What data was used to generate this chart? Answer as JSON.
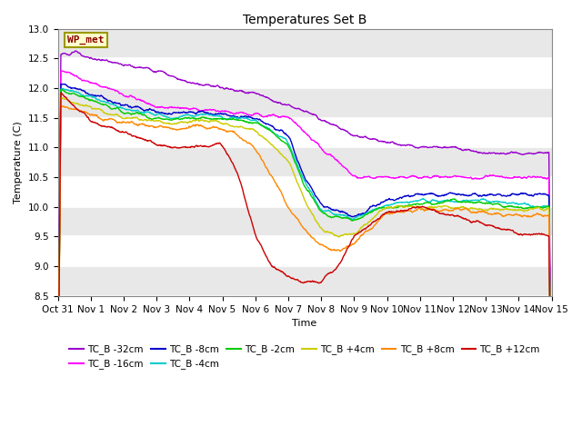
{
  "title": "Temperatures Set B",
  "xlabel": "Time",
  "ylabel": "Temperature (C)",
  "ylim": [
    8.5,
    13.0
  ],
  "yticks": [
    8.5,
    9.0,
    9.5,
    10.0,
    10.5,
    11.0,
    11.5,
    12.0,
    12.5,
    13.0
  ],
  "xtick_labels": [
    "Oct 31",
    "Nov 1",
    "Nov 2",
    "Nov 3",
    "Nov 4",
    "Nov 5",
    "Nov 6",
    "Nov 7",
    "Nov 8",
    "Nov 9",
    "Nov 10",
    "Nov 11",
    "Nov 12",
    "Nov 13",
    "Nov 14",
    "Nov 15"
  ],
  "wp_met_label": "WP_met",
  "series": [
    {
      "name": "TC_B -32cm",
      "color": "#9900cc",
      "lw": 1.0
    },
    {
      "name": "TC_B -16cm",
      "color": "#ff00ff",
      "lw": 1.0
    },
    {
      "name": "TC_B -8cm",
      "color": "#0000cc",
      "lw": 1.0
    },
    {
      "name": "TC_B -4cm",
      "color": "#00cccc",
      "lw": 1.0
    },
    {
      "name": "TC_B -2cm",
      "color": "#00cc00",
      "lw": 1.0
    },
    {
      "name": "TC_B +4cm",
      "color": "#cccc00",
      "lw": 1.0
    },
    {
      "name": "TC_B +8cm",
      "color": "#ff8800",
      "lw": 1.0
    },
    {
      "name": "TC_B +12cm",
      "color": "#cc0000",
      "lw": 1.0
    }
  ],
  "background_color": "#ffffff",
  "plot_bg_color": "#ffffff",
  "grid_color": "#d8d8d8",
  "n_points": 1440
}
